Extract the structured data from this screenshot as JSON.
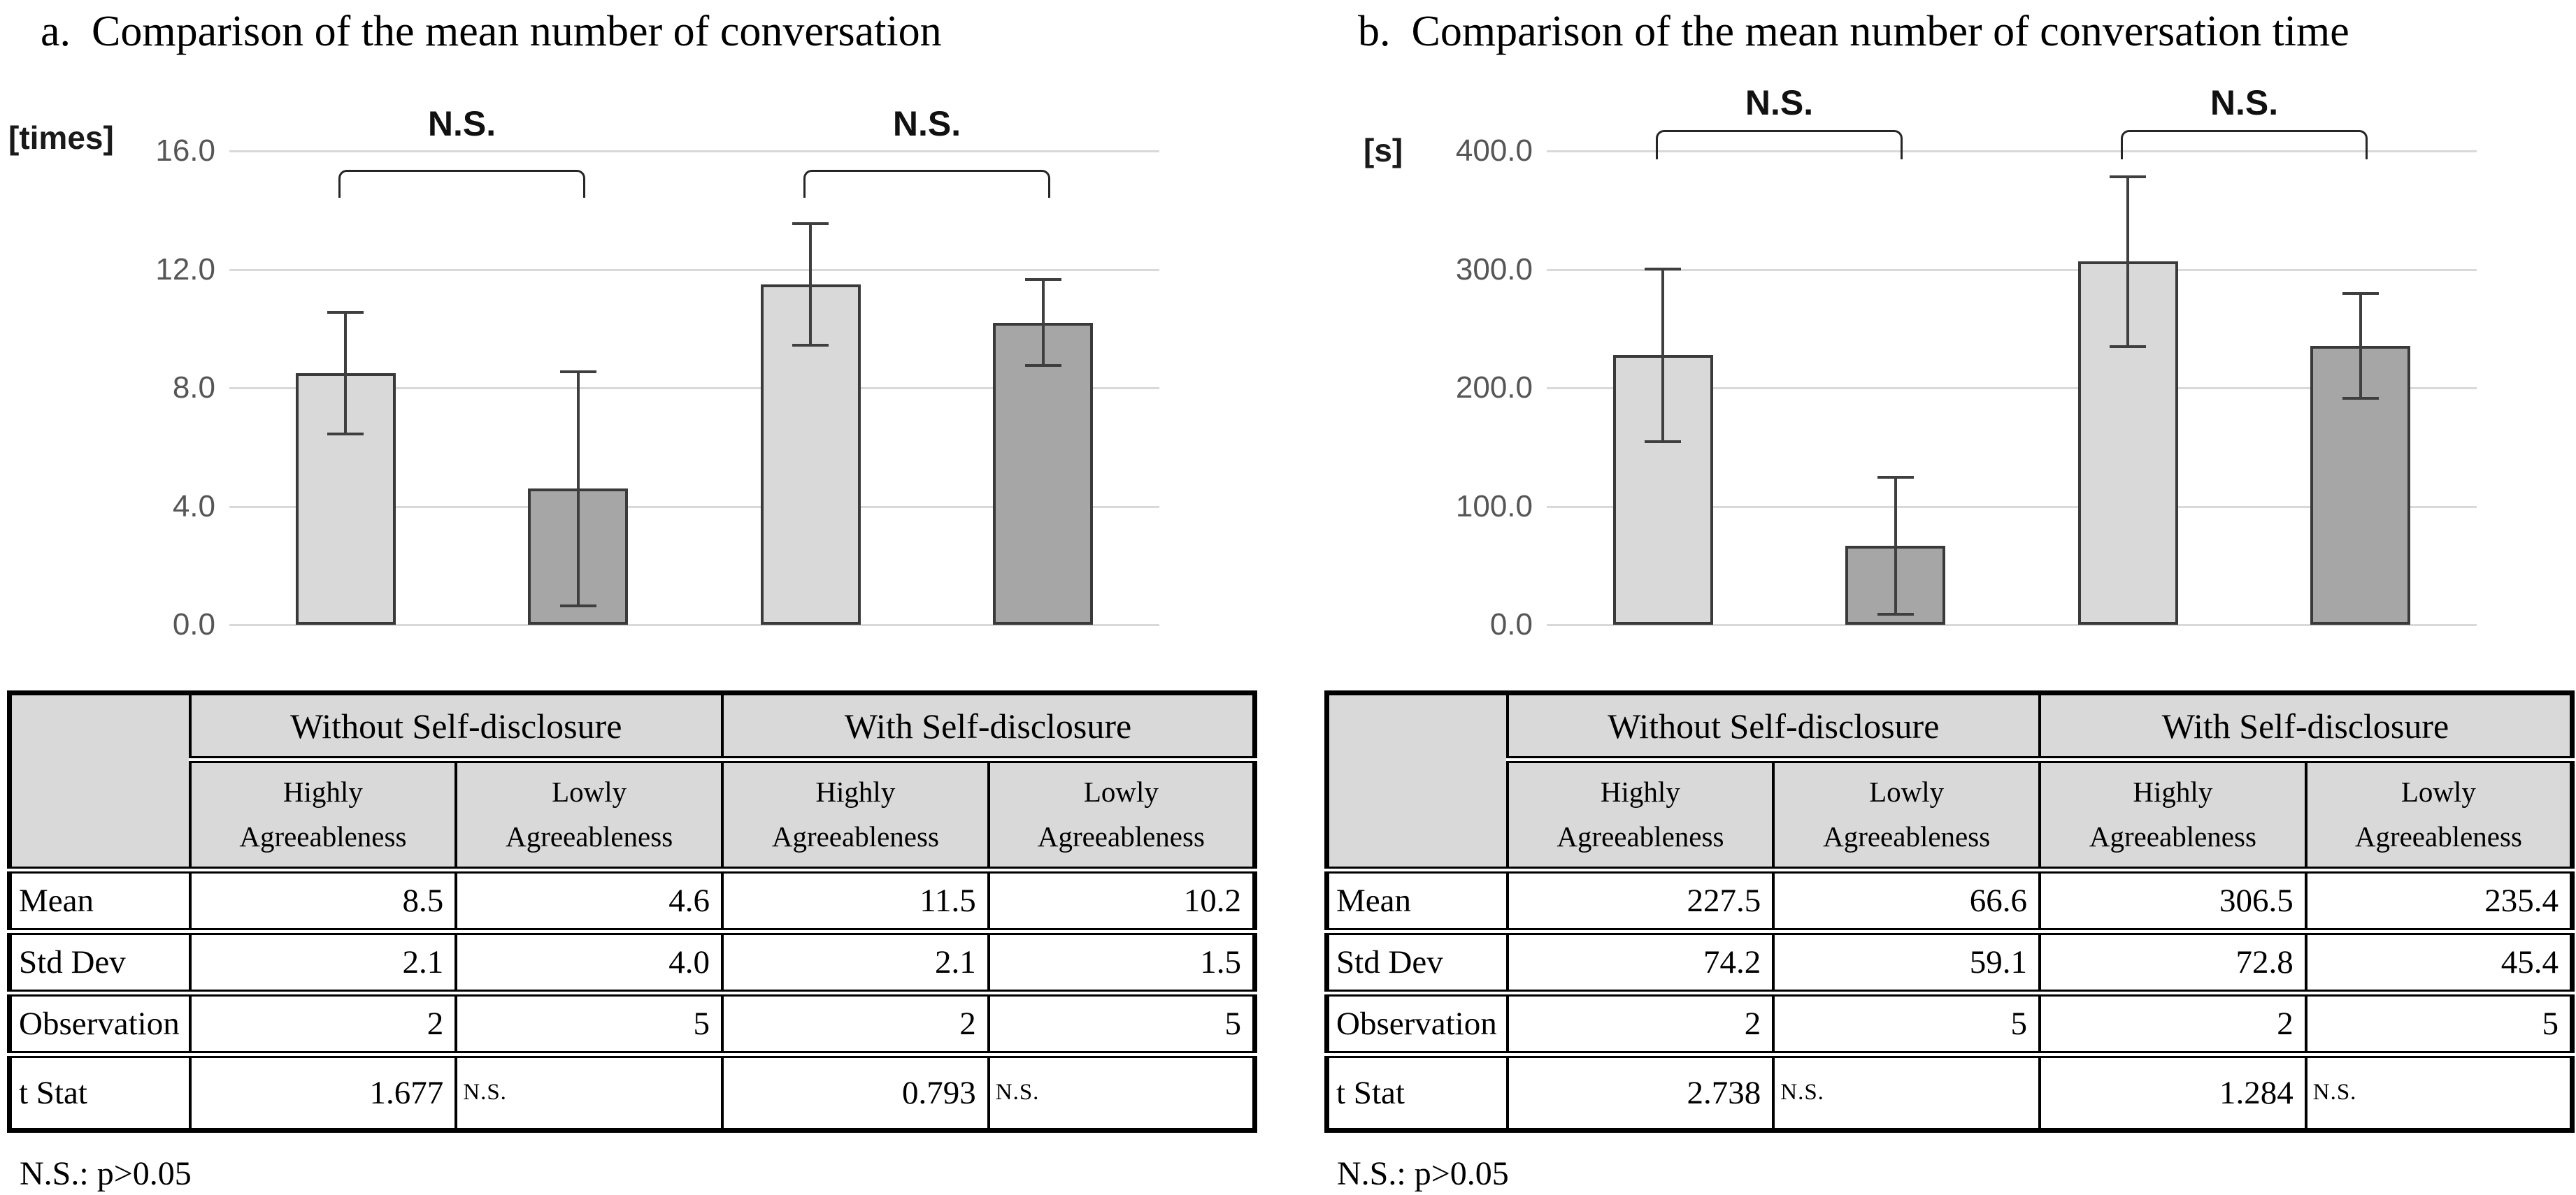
{
  "figure": {
    "panels": [
      {
        "label": "a.",
        "title": "Comparison of the mean number of conversation",
        "unit": "[times]",
        "footnote": "N.S.:  p>0.05",
        "chart_data": {
          "type": "bar",
          "categories": [
            "Without Self-disclosure / Highly Agreeableness",
            "Without Self-disclosure / Lowly Agreeableness",
            "With Self-disclosure / Highly Agreeableness",
            "With Self-disclosure / Lowly Agreeableness"
          ],
          "values": [
            8.5,
            4.6,
            11.5,
            10.2
          ],
          "error_bars": [
            2.1,
            4.0,
            2.1,
            1.5
          ],
          "title": "a. Comparison of the mean number of conversation",
          "xlabel": "",
          "ylabel": "[times]",
          "ylim": [
            0,
            16
          ],
          "ytick_labels": [
            "16.0",
            "12.0",
            "8.0",
            "4.0",
            "0.0"
          ],
          "grid": true,
          "legend": "none",
          "annotations": [
            "N.S.",
            "N.S."
          ],
          "bar_fills": [
            "#d9d9d9",
            "#a6a6a6",
            "#d9d9d9",
            "#a6a6a6"
          ]
        },
        "table": {
          "group_headers": [
            "Without Self-disclosure",
            "With Self-disclosure"
          ],
          "column_headers": [
            "Highly Agreeableness",
            "Lowly Agreeableness",
            "Highly Agreeableness",
            "Lowly Agreeableness"
          ],
          "rows": [
            {
              "label": "Mean",
              "values": [
                "8.5",
                "4.6",
                "11.5",
                "10.2"
              ]
            },
            {
              "label": "Std Dev",
              "values": [
                "2.1",
                "4.0",
                "2.1",
                "1.5"
              ]
            },
            {
              "label": "Observation",
              "values": [
                "2",
                "5",
                "2",
                "5"
              ]
            },
            {
              "label": "t Stat",
              "values": [
                "1.677",
                "N.S.",
                "0.793",
                "N.S."
              ]
            }
          ]
        }
      },
      {
        "label": "b.",
        "title": "Comparison of the mean number of conversation time",
        "unit": "[s]",
        "footnote": "N.S.:  p>0.05",
        "chart_data": {
          "type": "bar",
          "categories": [
            "Without Self-disclosure / Highly Agreeableness",
            "Without Self-disclosure / Lowly Agreeableness",
            "With Self-disclosure / Highly Agreeableness",
            "With Self-disclosure / Lowly Agreeableness"
          ],
          "values": [
            227.5,
            66.6,
            306.5,
            235.4
          ],
          "error_bars": [
            74.2,
            59.1,
            72.8,
            45.4
          ],
          "title": "b. Comparison of the mean number of conversation time",
          "xlabel": "",
          "ylabel": "[s]",
          "ylim": [
            0,
            400
          ],
          "ytick_labels": [
            "400.0",
            "300.0",
            "200.0",
            "100.0",
            "0.0"
          ],
          "grid": true,
          "legend": "none",
          "annotations": [
            "N.S.",
            "N.S."
          ],
          "bar_fills": [
            "#d9d9d9",
            "#a6a6a6",
            "#d9d9d9",
            "#a6a6a6"
          ]
        },
        "table": {
          "group_headers": [
            "Without Self-disclosure",
            "With Self-disclosure"
          ],
          "column_headers": [
            "Highly Agreeableness",
            "Lowly Agreeableness",
            "Highly Agreeableness",
            "Lowly Agreeableness"
          ],
          "rows": [
            {
              "label": "Mean",
              "values": [
                "227.5",
                "66.6",
                "306.5",
                "235.4"
              ]
            },
            {
              "label": "Std Dev",
              "values": [
                "74.2",
                "59.1",
                "72.8",
                "45.4"
              ]
            },
            {
              "label": "Observation",
              "values": [
                "2",
                "5",
                "2",
                "5"
              ]
            },
            {
              "label": "t Stat",
              "values": [
                "2.738",
                "N.S.",
                "1.284",
                "N.S."
              ]
            }
          ]
        }
      }
    ]
  },
  "colors": {
    "bar_light": "#d9d9d9",
    "bar_dark": "#a6a6a6",
    "bar_border": "#3a3a3a",
    "gridline": "#d9d9d9",
    "error_bar": "#3f3f3f",
    "header_bg": "#d9d9d9",
    "table_border": "#000000"
  }
}
